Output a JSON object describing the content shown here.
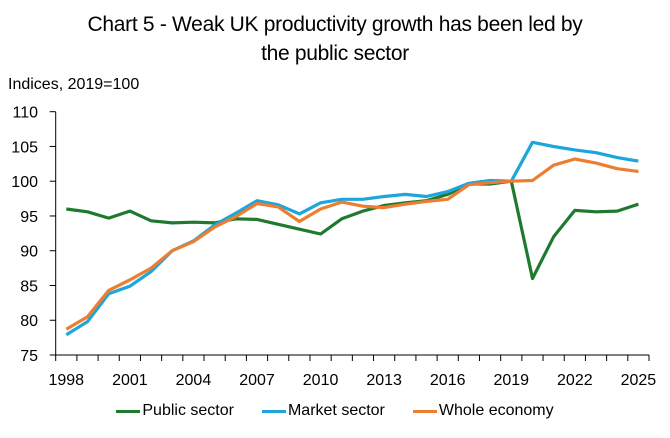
{
  "chart_data": {
    "type": "line",
    "title_line1": "Chart 5 - Weak UK productivity growth has been led by",
    "title_line2": "the public sector",
    "ylabel": "Indices, 2019=100",
    "xlabel": "",
    "ylim": [
      75,
      110
    ],
    "yticks": [
      75,
      80,
      85,
      90,
      95,
      100,
      105,
      110
    ],
    "x": [
      1998,
      1999,
      2000,
      2001,
      2002,
      2003,
      2004,
      2005,
      2006,
      2007,
      2008,
      2009,
      2010,
      2011,
      2012,
      2013,
      2014,
      2015,
      2016,
      2017,
      2018,
      2019,
      2020,
      2021,
      2022,
      2023,
      2024,
      2025
    ],
    "xtick_labels": [
      "1998",
      "2001",
      "2004",
      "2007",
      "2010",
      "2013",
      "2016",
      "2019",
      "2022",
      "2025"
    ],
    "grid": false,
    "legend_position": "bottom",
    "series": [
      {
        "name": "Public sector",
        "color": "#1f7a2f",
        "values": [
          96.0,
          95.6,
          94.7,
          95.7,
          94.3,
          94.0,
          94.1,
          94.0,
          94.6,
          94.5,
          93.8,
          93.1,
          92.4,
          94.6,
          95.7,
          96.5,
          96.9,
          97.2,
          98.1,
          99.6,
          99.6,
          100.0,
          86.0,
          92.0,
          95.8,
          95.6,
          95.7,
          96.7
        ]
      },
      {
        "name": "Market sector",
        "color": "#1ca6dd",
        "values": [
          77.9,
          79.8,
          83.8,
          84.9,
          87.0,
          90.0,
          91.4,
          93.7,
          95.4,
          97.2,
          96.6,
          95.3,
          96.9,
          97.4,
          97.4,
          97.8,
          98.1,
          97.8,
          98.5,
          99.7,
          100.1,
          100.0,
          105.6,
          105.0,
          104.5,
          104.1,
          103.4,
          102.9
        ]
      },
      {
        "name": "Whole economy",
        "color": "#ed7d31",
        "values": [
          78.7,
          80.5,
          84.3,
          85.8,
          87.5,
          90.0,
          91.3,
          93.4,
          94.9,
          96.8,
          96.3,
          94.2,
          96.0,
          97.0,
          96.4,
          96.2,
          96.7,
          97.1,
          97.4,
          99.5,
          99.8,
          100.0,
          100.1,
          102.3,
          103.2,
          102.6,
          101.8,
          101.4
        ]
      }
    ]
  }
}
